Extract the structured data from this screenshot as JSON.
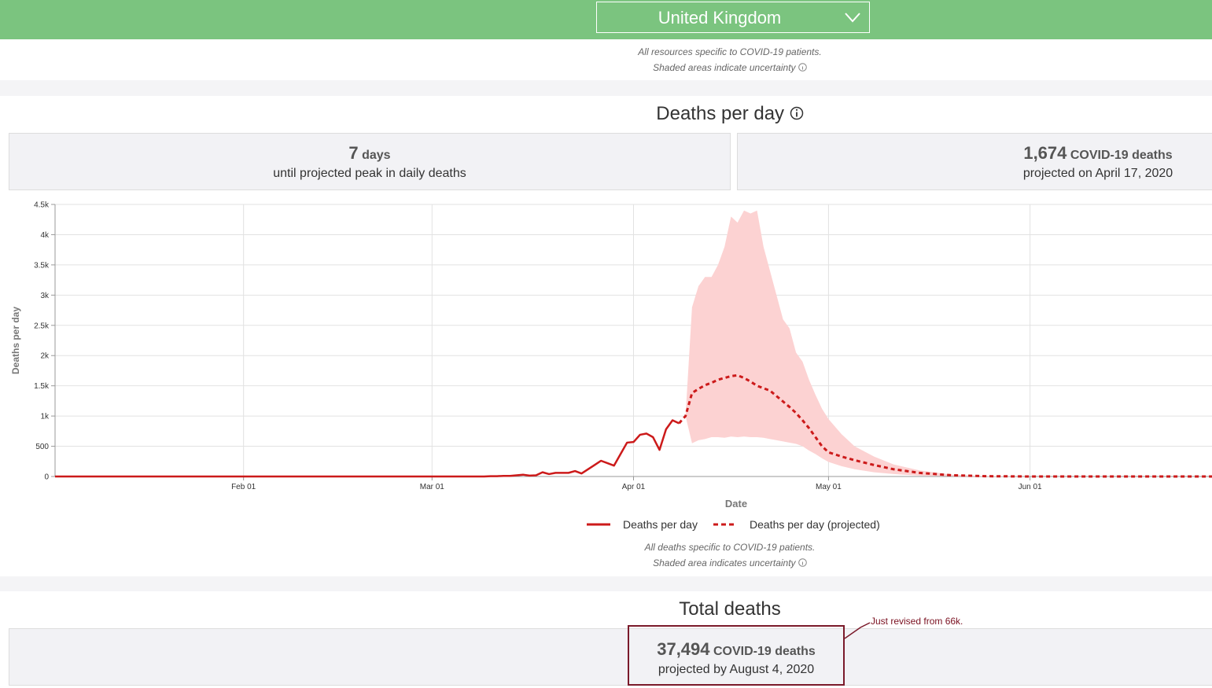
{
  "header": {
    "location": "United Kingdom",
    "notes": [
      "All resources specific to COVID-19 patients.",
      "Shaded areas indicate uncertainty"
    ]
  },
  "deaths_per_day": {
    "title": "Deaths per day",
    "stats": [
      {
        "number": "7",
        "unit": "days",
        "caption": "until projected peak in daily deaths"
      },
      {
        "number": "1,674",
        "unit": "COVID-19 deaths",
        "caption": "projected on April 17, 2020"
      }
    ],
    "notes": [
      "All deaths specific to COVID-19 patients.",
      "Shaded area indicates uncertainty"
    ]
  },
  "chart_data": {
    "type": "line",
    "x_label": "Date",
    "y_label": "Deaths per day",
    "xlim": [
      "Jan 03",
      "Jun 29"
    ],
    "xticks": [
      "Feb 01",
      "Mar 01",
      "Apr 01",
      "May 01",
      "Jun 01"
    ],
    "ylim": [
      0,
      4500
    ],
    "yticks": [
      0,
      500,
      {
        "value": 1000,
        "label": "1k"
      },
      {
        "value": 1500,
        "label": "1.5k"
      },
      {
        "value": 2000,
        "label": "2k"
      },
      {
        "value": 2500,
        "label": "2.5k"
      },
      {
        "value": 3000,
        "label": "3k"
      },
      {
        "value": 3500,
        "label": "3.5k"
      },
      {
        "value": 4000,
        "label": "4k"
      },
      {
        "value": 4500,
        "label": "4.5k"
      }
    ],
    "grid": true,
    "series": [
      {
        "name": "Deaths per day",
        "color": "#cc1a1a",
        "dashed": false,
        "x": [
          "Jan 03",
          "Mar 09",
          "Mar 10",
          "Mar 11",
          "Mar 12",
          "Mar 13",
          "Mar 14",
          "Mar 15",
          "Mar 16",
          "Mar 17",
          "Mar 18",
          "Mar 19",
          "Mar 20",
          "Mar 21",
          "Mar 22",
          "Mar 23",
          "Mar 24",
          "Mar 25",
          "Mar 26",
          "Mar 27",
          "Mar 28",
          "Mar 29",
          "Mar 30",
          "Mar 31",
          "Apr 01",
          "Apr 02",
          "Apr 03",
          "Apr 04",
          "Apr 05",
          "Apr 06",
          "Apr 07",
          "Apr 08"
        ],
        "values": [
          0,
          0,
          5,
          5,
          10,
          10,
          20,
          30,
          15,
          20,
          70,
          40,
          60,
          60,
          60,
          90,
          50,
          120,
          190,
          260,
          220,
          180,
          370,
          560,
          570,
          690,
          710,
          650,
          440,
          780,
          930,
          880
        ]
      },
      {
        "name": "Deaths per day (projected)",
        "color": "#cc1a1a",
        "dashed": true,
        "x": [
          "Apr 08",
          "Apr 09",
          "Apr 10",
          "Apr 11",
          "Apr 12",
          "Apr 13",
          "Apr 14",
          "Apr 15",
          "Apr 16",
          "Apr 17",
          "Apr 18",
          "Apr 19",
          "Apr 20",
          "Apr 21",
          "Apr 22",
          "Apr 23",
          "Apr 24",
          "Apr 25",
          "Apr 26",
          "Apr 27",
          "Apr 28",
          "Apr 29",
          "Apr 30",
          "May 01",
          "May 03",
          "May 05",
          "May 08",
          "May 11",
          "May 15",
          "May 20",
          "May 25",
          "Jun 01",
          "Jun 29"
        ],
        "values": [
          880,
          1000,
          1380,
          1450,
          1510,
          1550,
          1600,
          1630,
          1660,
          1674,
          1630,
          1570,
          1500,
          1460,
          1420,
          1330,
          1240,
          1150,
          1050,
          930,
          800,
          650,
          500,
          400,
          330,
          270,
          190,
          120,
          60,
          20,
          5,
          0,
          0
        ]
      }
    ],
    "band": {
      "color": "#fcd2d2",
      "x": [
        "Apr 09",
        "Apr 10",
        "Apr 11",
        "Apr 12",
        "Apr 13",
        "Apr 14",
        "Apr 15",
        "Apr 16",
        "Apr 17",
        "Apr 18",
        "Apr 19",
        "Apr 20",
        "Apr 21",
        "Apr 22",
        "Apr 23",
        "Apr 24",
        "Apr 25",
        "Apr 26",
        "Apr 27",
        "Apr 28",
        "Apr 29",
        "Apr 30",
        "May 01",
        "May 03",
        "May 05",
        "May 08",
        "May 11",
        "May 15",
        "May 20",
        "May 25",
        "Jun 01"
      ],
      "upper": [
        1000,
        2800,
        3150,
        3300,
        3300,
        3500,
        3800,
        4300,
        4200,
        4400,
        4350,
        4400,
        3800,
        3400,
        3000,
        2600,
        2450,
        2050,
        1900,
        1600,
        1350,
        1120,
        950,
        700,
        500,
        330,
        200,
        100,
        30,
        10,
        0
      ],
      "lower": [
        1000,
        550,
        600,
        620,
        650,
        650,
        640,
        660,
        650,
        660,
        650,
        650,
        640,
        620,
        600,
        580,
        560,
        540,
        500,
        430,
        370,
        300,
        240,
        170,
        120,
        70,
        40,
        15,
        5,
        0,
        0
      ]
    }
  },
  "total_deaths": {
    "title": "Total deaths",
    "number": "37,494",
    "unit": "COVID-19 deaths",
    "caption": "projected by August 4, 2020",
    "annotation": "Just revised from 66k."
  }
}
